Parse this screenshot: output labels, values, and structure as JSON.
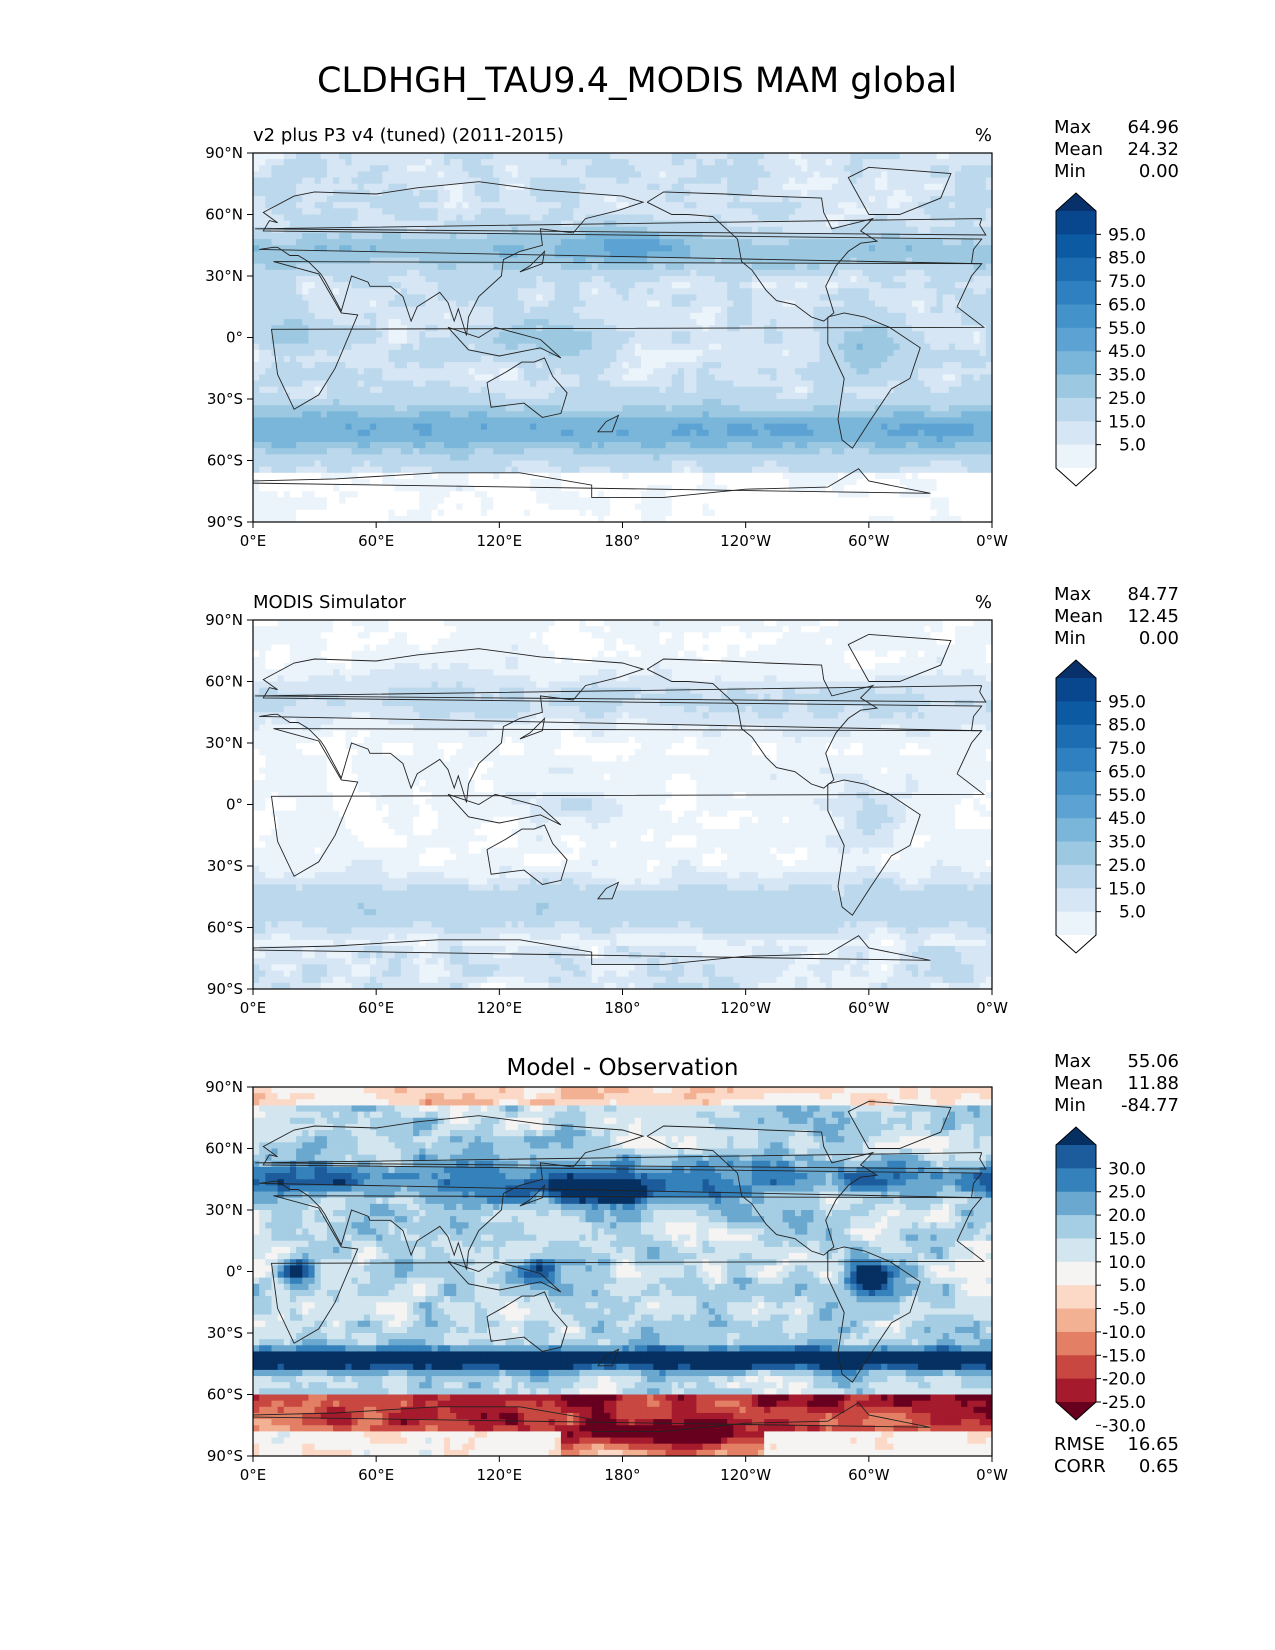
{
  "title": "CLDHGH_TAU9.4_MODIS MAM global",
  "lat_ticks": [
    "90°N",
    "60°N",
    "30°N",
    "0°",
    "30°S",
    "60°S",
    "90°S"
  ],
  "lon_ticks": [
    "0°E",
    "60°E",
    "120°E",
    "180°",
    "120°W",
    "60°W",
    "0°W"
  ],
  "stat_labels": {
    "max": "Max",
    "mean": "Mean",
    "min": "Min",
    "rmse": "RMSE",
    "corr": "CORR"
  },
  "panels": [
    {
      "id": "test",
      "left_title": "v2 plus P3 v4 (tuned) (2011-2015)",
      "center_title": "",
      "units": "%",
      "stats": {
        "max": "64.96",
        "mean": "24.32",
        "min": "0.00"
      },
      "colormap": "Blues",
      "colorbar_labels": [
        "95.0",
        "85.0",
        "75.0",
        "65.0",
        "55.0",
        "45.0",
        "35.0",
        "25.0",
        "15.0",
        "5.0"
      ],
      "colorbar_colors": [
        "#08306b",
        "#08468e",
        "#0b5aa2",
        "#1c6db2",
        "#2f80c0",
        "#4392ca",
        "#5ca3d3",
        "#7ab6da",
        "#9cc9e1",
        "#bcd8ec",
        "#d7e6f4",
        "#ebf3fb",
        "#ffffff"
      ]
    },
    {
      "id": "reference",
      "left_title": "MODIS Simulator",
      "center_title": "",
      "units": "%",
      "stats": {
        "max": "84.77",
        "mean": "12.45",
        "min": "0.00"
      },
      "colormap": "Blues",
      "colorbar_labels": [
        "95.0",
        "85.0",
        "75.0",
        "65.0",
        "55.0",
        "45.0",
        "35.0",
        "25.0",
        "15.0",
        "5.0"
      ],
      "colorbar_colors": [
        "#08306b",
        "#08468e",
        "#0b5aa2",
        "#1c6db2",
        "#2f80c0",
        "#4392ca",
        "#5ca3d3",
        "#7ab6da",
        "#9cc9e1",
        "#bcd8ec",
        "#d7e6f4",
        "#ebf3fb",
        "#ffffff"
      ]
    },
    {
      "id": "difference",
      "left_title": "",
      "center_title": "Model - Observation",
      "units": "",
      "stats": {
        "max": "55.06",
        "mean": "11.88",
        "min": "-84.77",
        "rmse": "16.65",
        "corr": "0.65"
      },
      "colormap": "RdBu",
      "colorbar_labels": [
        "30.0",
        "25.0",
        "20.0",
        "15.0",
        "10.0",
        "5.0",
        "-5.0",
        "-10.0",
        "-15.0",
        "-20.0",
        "-25.0",
        "-30.0"
      ],
      "colorbar_colors": [
        "#053061",
        "#1c5b9c",
        "#3581bb",
        "#6aa8cf",
        "#a5cde3",
        "#d3e6f0",
        "#f5f4f2",
        "#fbd9c6",
        "#f3b193",
        "#e27f64",
        "#c84740",
        "#a51a2c",
        "#67001f"
      ]
    }
  ]
}
